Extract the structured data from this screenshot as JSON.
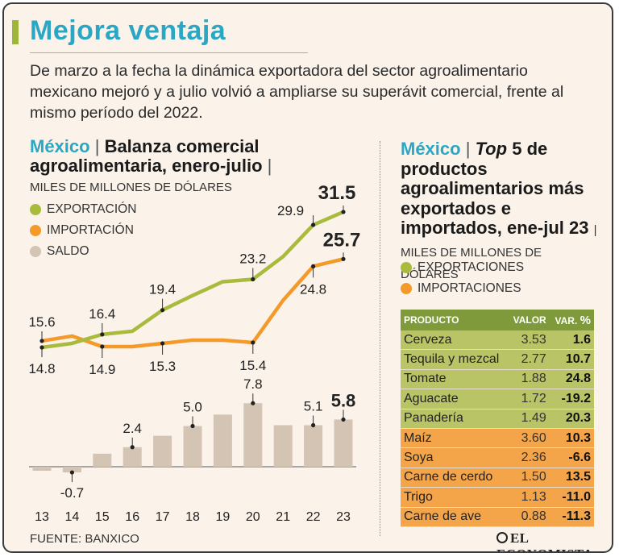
{
  "header": {
    "title": "Mejora ventaja",
    "subtitle": "De marzo a la fecha la dinámica exportadora del sector agroalimentario mexicano mejoró y a julio volvió a ampliarse su superávit comercial, frente al mismo período del 2022."
  },
  "left_panel": {
    "country": "México",
    "separator": "|",
    "title": "Balanza comercial agroalimentaria, enero-julio",
    "title_end": "|",
    "units": "MILES DE MILLONES DE DÓLARES",
    "legend": [
      {
        "label": "EXPORTACIÓN",
        "color": "#a8bb3d"
      },
      {
        "label": "IMPORTACIÓN",
        "color": "#f39a2b"
      },
      {
        "label": "SALDO",
        "color": "#d3c4b4"
      }
    ]
  },
  "right_panel": {
    "country": "México",
    "separator": "|",
    "title_italic": "Top",
    "title_num": "5",
    "title_rest": "de productos agroalimentarios más exportados e importados, ene-jul 23",
    "units": "| MILES DE MILLONES DE DÓLARES",
    "legend": [
      {
        "label": "EXPORTACIONES",
        "color": "#a8bb3d"
      },
      {
        "label": "IMPORTACIONES",
        "color": "#f39a2b"
      }
    ]
  },
  "chart_data": {
    "type": "line",
    "title": "Balanza comercial agroalimentaria, enero-julio",
    "ylabel": "Miles de millones de dólares",
    "categories": [
      "13",
      "14",
      "15",
      "16",
      "17",
      "18",
      "19",
      "20",
      "21",
      "22",
      "23"
    ],
    "series": [
      {
        "name": "Exportación",
        "type": "line",
        "color": "#a8bb3d",
        "values": [
          14.8,
          15.3,
          16.4,
          16.8,
          19.4,
          21.2,
          22.9,
          23.2,
          26.0,
          29.9,
          31.5
        ]
      },
      {
        "name": "Importación",
        "type": "line",
        "color": "#f39a2b",
        "values": [
          15.6,
          16.2,
          14.9,
          14.9,
          15.3,
          15.7,
          15.7,
          15.4,
          20.6,
          24.8,
          25.7
        ]
      },
      {
        "name": "Saldo",
        "type": "bar",
        "color": "#d3c4b4",
        "values": [
          -0.5,
          -0.7,
          1.6,
          2.4,
          3.8,
          5.0,
          6.4,
          7.8,
          5.1,
          5.1,
          5.8
        ]
      }
    ],
    "data_labels": {
      "export": [
        {
          "i": 0,
          "text": "14.8"
        },
        {
          "i": 2,
          "text": "16.4"
        },
        {
          "i": 4,
          "text": "19.4"
        },
        {
          "i": 7,
          "text": "23.2"
        },
        {
          "i": 9,
          "text": "29.9"
        },
        {
          "i": 10,
          "text": "31.5"
        }
      ],
      "import": [
        {
          "i": 0,
          "text": "15.6"
        },
        {
          "i": 2,
          "text": "14.9"
        },
        {
          "i": 4,
          "text": "15.3"
        },
        {
          "i": 7,
          "text": "15.4"
        },
        {
          "i": 9,
          "text": "24.8"
        },
        {
          "i": 10,
          "text": "25.7"
        }
      ],
      "saldo": [
        {
          "i": 1,
          "text": "-0.7"
        },
        {
          "i": 3,
          "text": "2.4"
        },
        {
          "i": 5,
          "text": "5.0"
        },
        {
          "i": 7,
          "text": "7.8"
        },
        {
          "i": 9,
          "text": "5.1"
        },
        {
          "i": 10,
          "text": "5.8"
        }
      ]
    }
  },
  "products_table": {
    "columns": [
      "PRODUCTO",
      "VALOR",
      "VAR.",
      "%"
    ],
    "rows": [
      {
        "product": "Cerveza",
        "value": "3.53",
        "change": "1.6",
        "kind": "exp"
      },
      {
        "product": "Tequila y mezcal",
        "value": "2.77",
        "change": "10.7",
        "kind": "exp"
      },
      {
        "product": "Tomate",
        "value": "1.88",
        "change": "24.8",
        "kind": "exp"
      },
      {
        "product": "Aguacate",
        "value": "1.72",
        "change": "-19.2",
        "kind": "exp"
      },
      {
        "product": "Panadería",
        "value": "1.49",
        "change": "20.3",
        "kind": "exp"
      },
      {
        "product": "Maíz",
        "value": "3.60",
        "change": "10.3",
        "kind": "imp"
      },
      {
        "product": "Soya",
        "value": "2.36",
        "change": "-6.6",
        "kind": "imp"
      },
      {
        "product": "Carne de cerdo",
        "value": "1.50",
        "change": "13.5",
        "kind": "imp"
      },
      {
        "product": "Trigo",
        "value": "1.13",
        "change": "-11.0",
        "kind": "imp"
      },
      {
        "product": "Carne de ave",
        "value": "0.88",
        "change": "-11.3",
        "kind": "imp"
      }
    ]
  },
  "footer": {
    "source": "FUENTE: BANXICO",
    "brand": "EL ECONOMISTA"
  }
}
